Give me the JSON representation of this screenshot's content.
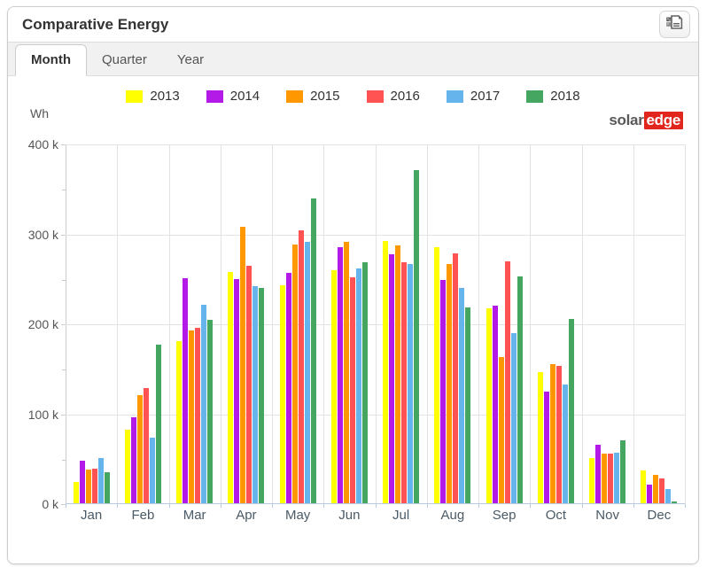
{
  "panel": {
    "title": "Comparative Energy"
  },
  "toolbar": {
    "export_button": "export-report"
  },
  "tabs": [
    {
      "label": "Month",
      "active": true
    },
    {
      "label": "Quarter",
      "active": false
    },
    {
      "label": "Year",
      "active": false
    }
  ],
  "logo": {
    "part1": "solar",
    "part2": "edge"
  },
  "chart_data": {
    "type": "bar",
    "title": "Comparative Energy",
    "unit": "Wh",
    "y_axis": {
      "label": "Wh",
      "tick_labels": [
        "400 k",
        "300 k",
        "200 k",
        "100 k",
        "0 k"
      ],
      "min_k": 0,
      "max_k": 400,
      "minor_tick_step_k": 50
    },
    "categories": [
      "Jan",
      "Feb",
      "Mar",
      "Apr",
      "May",
      "Jun",
      "Jul",
      "Aug",
      "Sep",
      "Oct",
      "Nov",
      "Dec"
    ],
    "series": [
      {
        "name": "2013",
        "color": "#ffff00",
        "values_k": [
          25,
          83,
          181,
          258,
          243,
          260,
          293,
          286,
          218,
          147,
          51,
          37
        ]
      },
      {
        "name": "2014",
        "color": "#b31ae8",
        "values_k": [
          48,
          97,
          251,
          250,
          257,
          286,
          278,
          249,
          221,
          125,
          66,
          22
        ]
      },
      {
        "name": "2015",
        "color": "#ff9800",
        "values_k": [
          38,
          121,
          193,
          308,
          289,
          292,
          288,
          267,
          164,
          156,
          56,
          33
        ]
      },
      {
        "name": "2016",
        "color": "#ff5252",
        "values_k": [
          39,
          129,
          196,
          265,
          304,
          252,
          269,
          279,
          270,
          154,
          56,
          29
        ]
      },
      {
        "name": "2017",
        "color": "#66b4ec",
        "values_k": [
          51,
          74,
          222,
          242,
          292,
          262,
          267,
          240,
          190,
          133,
          57,
          17
        ]
      },
      {
        "name": "2018",
        "color": "#44a661",
        "values_k": [
          35,
          177,
          205,
          240,
          340,
          269,
          371,
          219,
          253,
          206,
          71,
          3
        ]
      }
    ],
    "legend_position": "top",
    "grid": true
  }
}
